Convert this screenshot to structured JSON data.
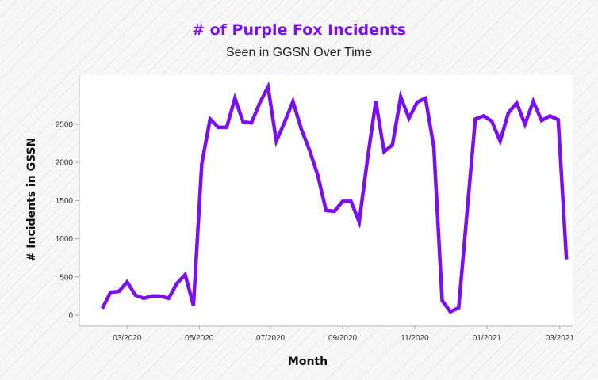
{
  "chart_data": {
    "type": "line",
    "title": "# of Purple Fox Incidents",
    "subtitle": "Seen in GGSN Over Time",
    "xlabel": "Month",
    "ylabel": "# Incidents in GSSN",
    "ylim": [
      0,
      3000
    ],
    "yticks": [
      0,
      500,
      1000,
      1500,
      2000,
      2500
    ],
    "xtick_labels": [
      "03/2020",
      "05/2020",
      "07/2020",
      "09/2020",
      "11/2020",
      "01/2021",
      "03/2021"
    ],
    "x_unit": "week index",
    "xtick_positions": [
      3,
      11.7,
      20.3,
      29,
      37.7,
      46.4,
      55.2
    ],
    "grid": false,
    "legend": "none",
    "line_color": "#7a0ff0",
    "series": [
      {
        "name": "Incidents",
        "values": [
          85,
          300,
          310,
          435,
          260,
          220,
          250,
          250,
          220,
          415,
          530,
          125,
          1980,
          2570,
          2460,
          2460,
          2840,
          2530,
          2520,
          2780,
          2990,
          2280,
          2530,
          2800,
          2440,
          2160,
          1830,
          1370,
          1360,
          1490,
          1490,
          1220,
          2050,
          2800,
          2140,
          2230,
          2860,
          2580,
          2790,
          2840,
          2200,
          190,
          45,
          95,
          1340,
          2570,
          2610,
          2540,
          2280,
          2650,
          2780,
          2500,
          2800,
          2550,
          2610,
          2560,
          730
        ]
      }
    ]
  }
}
